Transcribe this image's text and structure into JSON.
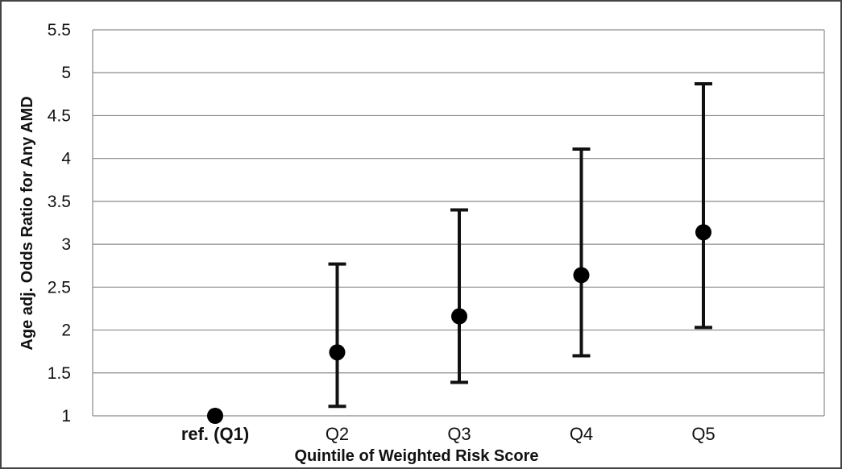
{
  "chart_data": {
    "type": "scatter",
    "title": "",
    "xlabel": "Quintile of Weighted Risk Score",
    "ylabel": "Age adj. Odds Ratio for Any AMD",
    "categories": [
      "ref. (Q1)",
      "Q2",
      "Q3",
      "Q4",
      "Q5"
    ],
    "values": [
      1.0,
      1.74,
      2.16,
      2.64,
      3.14
    ],
    "ci_lower": [
      null,
      1.11,
      1.39,
      1.7,
      2.03
    ],
    "ci_upper": [
      null,
      2.77,
      3.4,
      4.11,
      4.87
    ],
    "ylim": [
      1,
      5.5
    ],
    "yticks": [
      "1",
      "1.5",
      "2",
      "2.5",
      "3",
      "3.5",
      "4",
      "4.5",
      "5",
      "5.5"
    ],
    "grid": true,
    "legend": "none"
  }
}
